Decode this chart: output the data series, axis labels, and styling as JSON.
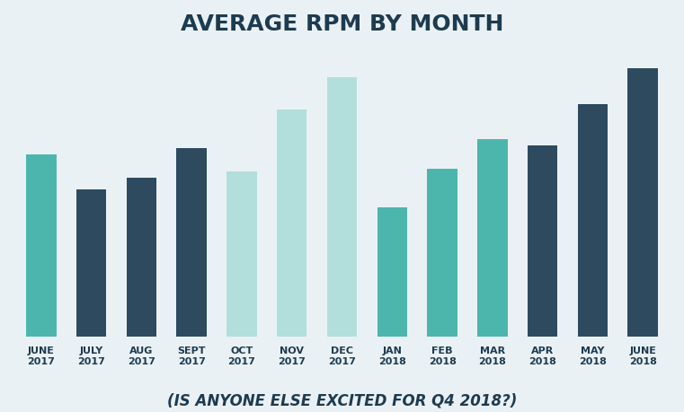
{
  "categories": [
    "JUNE\n2017",
    "JULY\n2017",
    "AUG\n2017",
    "SEPT\n2017",
    "OCT\n2017",
    "NOV\n2017",
    "DEC\n2017",
    "JAN\n2018",
    "FEB\n2018",
    "MAR\n2018",
    "APR\n2018",
    "MAY\n2018",
    "JUNE\n2018"
  ],
  "values": [
    62,
    50,
    54,
    64,
    56,
    77,
    88,
    44,
    57,
    67,
    65,
    79,
    91
  ],
  "bar_colors": [
    "#4db6ac",
    "#2d4a5f",
    "#2d4a5f",
    "#2d4a5f",
    "#b2dfdb",
    "#b2dfdb",
    "#b2dfdb",
    "#4db6ac",
    "#4db6ac",
    "#4db6ac",
    "#2d4a5f",
    "#2d4a5f",
    "#2d4a5f"
  ],
  "title": "AVERAGE RPM BY MONTH",
  "subtitle": "(IS ANYONE ELSE EXCITED FOR Q4 2018?)",
  "background_color": "#eaf1f4",
  "title_color": "#1d3b50",
  "subtitle_color": "#1d3b50",
  "title_fontsize": 18,
  "subtitle_fontsize": 12,
  "tick_label_fontsize": 8,
  "ylim": [
    0,
    100
  ],
  "bar_width": 0.6
}
